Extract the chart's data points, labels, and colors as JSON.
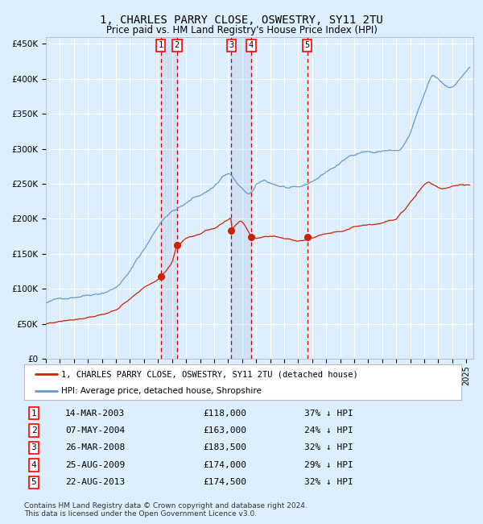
{
  "title": "1, CHARLES PARRY CLOSE, OSWESTRY, SY11 2TU",
  "subtitle": "Price paid vs. HM Land Registry's House Price Index (HPI)",
  "title_fontsize": 10,
  "subtitle_fontsize": 8.5,
  "xlim_start": 1995.0,
  "xlim_end": 2025.5,
  "ylim_min": 0,
  "ylim_max": 460000,
  "yticks": [
    0,
    50000,
    100000,
    150000,
    200000,
    250000,
    300000,
    350000,
    400000,
    450000
  ],
  "ytick_labels": [
    "£0",
    "£50K",
    "£100K",
    "£150K",
    "£200K",
    "£250K",
    "£300K",
    "£350K",
    "£400K",
    "£450K"
  ],
  "xticks": [
    1995,
    1996,
    1997,
    1998,
    1999,
    2000,
    2001,
    2002,
    2003,
    2004,
    2005,
    2006,
    2007,
    2008,
    2009,
    2010,
    2011,
    2012,
    2013,
    2014,
    2015,
    2016,
    2017,
    2018,
    2019,
    2020,
    2021,
    2022,
    2023,
    2024,
    2025
  ],
  "hpi_color": "#6699cc",
  "price_color": "#cc2200",
  "bg_color": "#ddeeff",
  "plot_bg_color": "#ddeeff",
  "grid_color": "#ffffff",
  "vline_color": "#cc0000",
  "marker_color": "#cc2200",
  "transactions": [
    {
      "num": 1,
      "date": "14-MAR-2003",
      "year": 2003.2,
      "price": 118000,
      "pct": "37%",
      "dir": "↓"
    },
    {
      "num": 2,
      "date": "07-MAY-2004",
      "year": 2004.35,
      "price": 163000,
      "pct": "24%",
      "dir": "↓"
    },
    {
      "num": 3,
      "date": "26-MAR-2008",
      "year": 2008.23,
      "price": 183500,
      "pct": "32%",
      "dir": "↓"
    },
    {
      "num": 4,
      "date": "25-AUG-2009",
      "year": 2009.65,
      "price": 174000,
      "pct": "29%",
      "dir": "↓"
    },
    {
      "num": 5,
      "date": "22-AUG-2013",
      "year": 2013.65,
      "price": 174500,
      "pct": "32%",
      "dir": "↓"
    }
  ],
  "legend_label_red": "1, CHARLES PARRY CLOSE, OSWESTRY, SY11 2TU (detached house)",
  "legend_label_blue": "HPI: Average price, detached house, Shropshire",
  "footnote": "Contains HM Land Registry data © Crown copyright and database right 2024.\nThis data is licensed under the Open Government Licence v3.0.",
  "table_rows": [
    [
      "1",
      "14-MAR-2003",
      "£118,000",
      "37% ↓ HPI"
    ],
    [
      "2",
      "07-MAY-2004",
      "£163,000",
      "24% ↓ HPI"
    ],
    [
      "3",
      "26-MAR-2008",
      "£183,500",
      "32% ↓ HPI"
    ],
    [
      "4",
      "25-AUG-2009",
      "£174,000",
      "29% ↓ HPI"
    ],
    [
      "5",
      "22-AUG-2013",
      "£174,500",
      "32% ↓ HPI"
    ]
  ]
}
